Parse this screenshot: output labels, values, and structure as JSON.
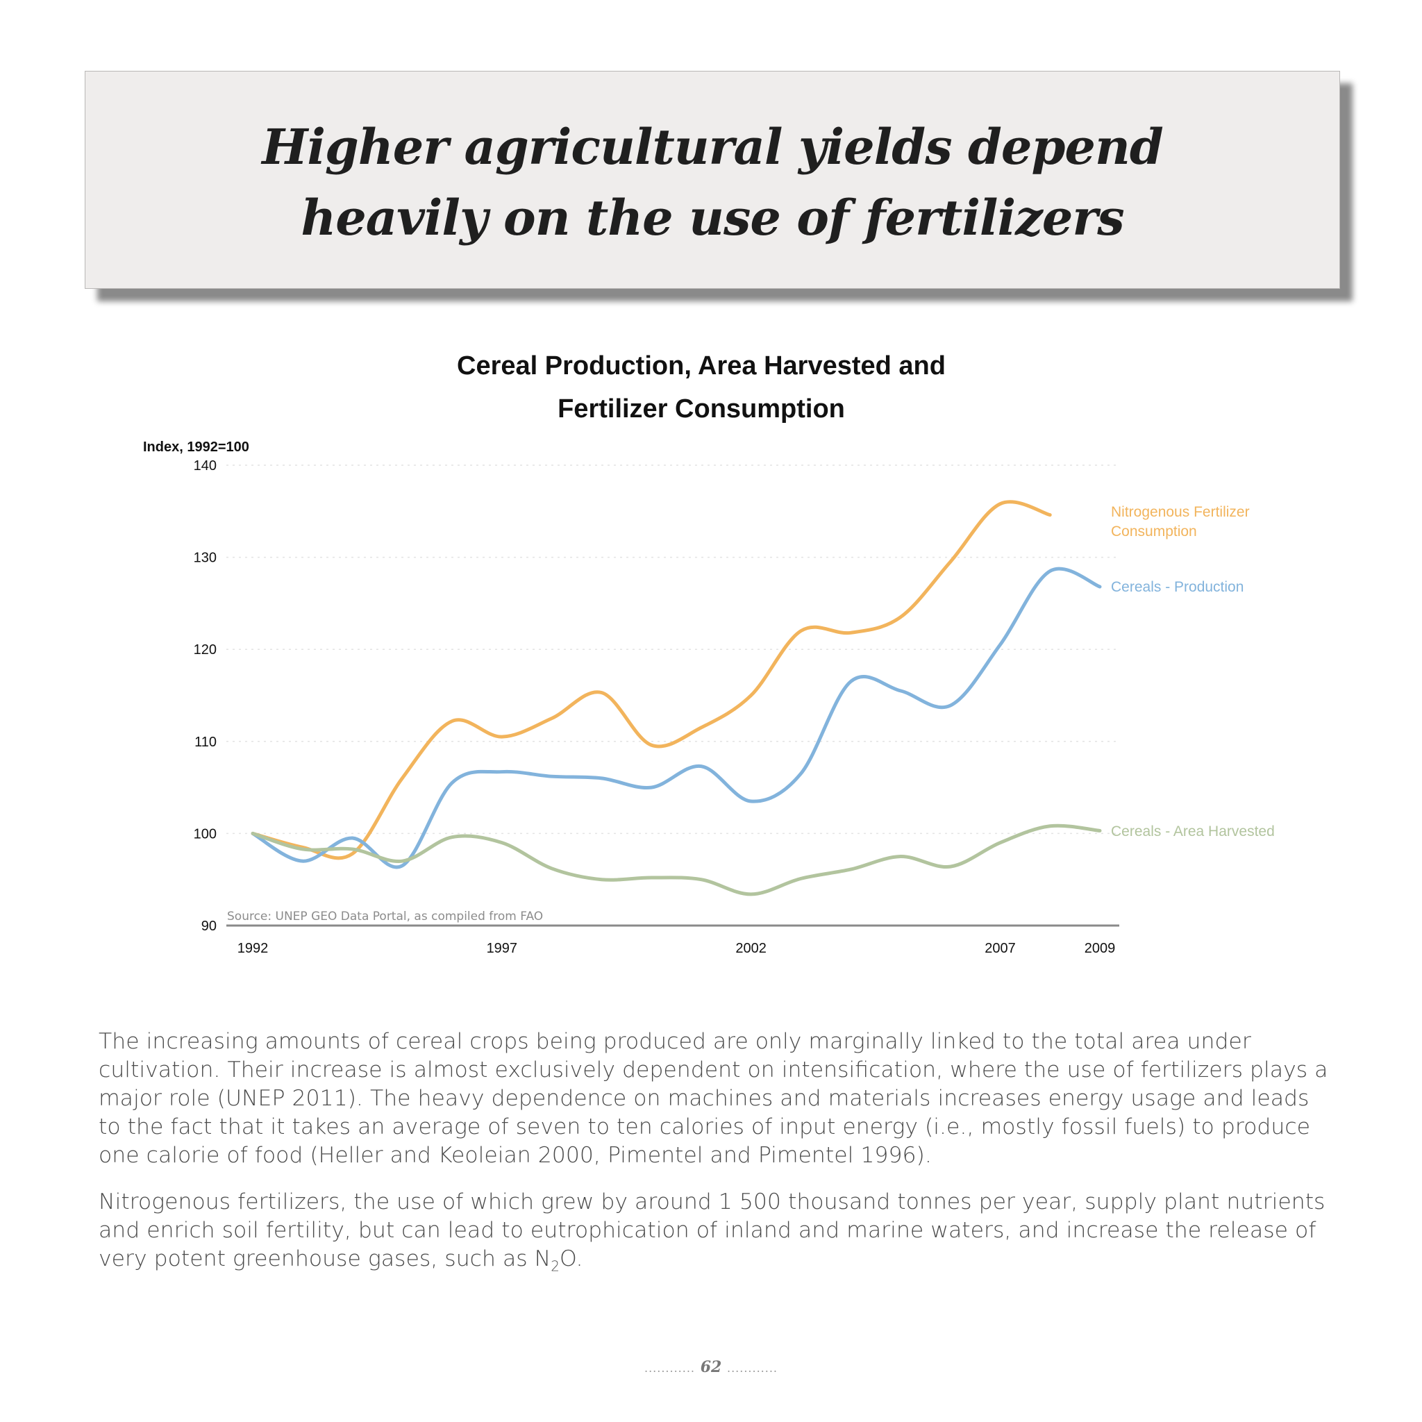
{
  "banner": {
    "line1": "Higher agricultural yields depend",
    "line2": "heavily on the use of fertilizers"
  },
  "chart_data": {
    "type": "line",
    "title_line1": "Cereal Production, Area Harvested and",
    "title_line2": "Fertilizer Consumption",
    "ylabel": "Index, 1992=100",
    "ylim": [
      90,
      140
    ],
    "yticks": [
      90,
      100,
      110,
      120,
      130,
      140
    ],
    "xlim": [
      1992,
      2009
    ],
    "xticks": [
      "1992",
      "1997",
      "2002",
      "2007",
      "2009"
    ],
    "grid": true,
    "source": "Source: UNEP GEO Data Portal, as compiled from FAO",
    "series": [
      {
        "name": "Nitrogenous Fertilizer Consumption",
        "label_line1": "Nitrogenous Fertilizer",
        "label_line2": "Consumption",
        "color": "#f2b45c",
        "x": [
          1992,
          1993,
          1994,
          1995,
          1996,
          1997,
          1998,
          1999,
          2000,
          2001,
          2002,
          2003,
          2004,
          2005,
          2006,
          2007,
          2008
        ],
        "values": [
          100,
          98.5,
          97.8,
          106,
          112.2,
          110.5,
          112.5,
          115.3,
          109.6,
          111.5,
          115,
          122,
          121.8,
          123.5,
          129.5,
          135.8,
          134.6
        ]
      },
      {
        "name": "Cereals - Production",
        "label_line1": "Cereals - Production",
        "color": "#82b3dc",
        "x": [
          1992,
          1993,
          1994,
          1995,
          1996,
          1997,
          1998,
          1999,
          2000,
          2001,
          2002,
          2003,
          2004,
          2005,
          2006,
          2007,
          2008,
          2009
        ],
        "values": [
          100,
          97,
          99.5,
          96.5,
          105.5,
          106.7,
          106.2,
          106,
          105,
          107.3,
          103.5,
          106.5,
          116.5,
          115.5,
          113.9,
          120.5,
          128.5,
          126.8
        ]
      },
      {
        "name": "Cereals - Area Harvested",
        "label_line1": "Cereals - Area Harvested",
        "color": "#b2c49e",
        "x": [
          1992,
          1993,
          1994,
          1995,
          1996,
          1997,
          1998,
          1999,
          2000,
          2001,
          2002,
          2003,
          2004,
          2005,
          2006,
          2007,
          2008,
          2009
        ],
        "values": [
          100,
          98.3,
          98.3,
          97,
          99.6,
          99,
          96.2,
          95,
          95.2,
          95,
          93.4,
          95.1,
          96.1,
          97.5,
          96.4,
          99,
          100.8,
          100.3
        ]
      }
    ]
  },
  "body": {
    "p1": "The increasing amounts of cereal crops being produced are only marginally linked to the total area under cultivation. Their increase is almost exclusively dependent on intensiﬁcation, where the use of fertilizers plays a major role (UNEP 2011). The heavy dependence on machines and materials increases energy usage and leads to the fact that it takes an average of seven to ten calories of input energy (i.e., mostly fossil fuels) to produce one calorie of food (Heller and Keoleian 2000, Pimentel and Pimentel 1996).",
    "p2_start": "Nitrogenous fertilizers, the use of which grew by around 1 500 thousand tonnes per year, supply plant nutrients and enrich soil fertility, but can lead to eutrophication of inland and marine waters, and increase the release of very potent greenhouse gases, such as N",
    "p2_sub": "2",
    "p2_end": "O."
  },
  "footer": {
    "page_number": "62",
    "dots": "............"
  }
}
